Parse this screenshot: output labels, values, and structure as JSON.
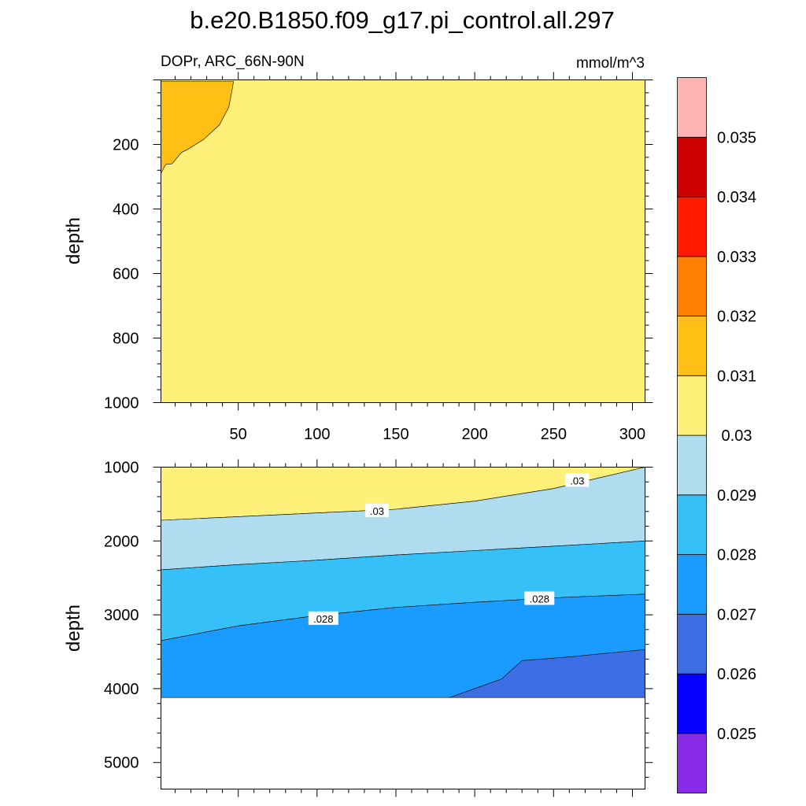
{
  "chart_data": {
    "type": "contour",
    "title": "b.e20.B1850.f09_g17.pi_control.all.297",
    "left_string": "DOPr, ARC_66N-90N",
    "right_string": "mmol/m^3",
    "ylabel": "depth",
    "x_ticks": [
      "50",
      "100",
      "150",
      "200",
      "250",
      "300"
    ],
    "x_range": [
      1,
      308
    ],
    "colorbar": {
      "levels": [
        "0.025",
        "0.026",
        "0.027",
        "0.028",
        "0.029",
        "0.03",
        "0.031",
        "0.032",
        "0.033",
        "0.034",
        "0.035"
      ],
      "colors": [
        "#8a2be8",
        "#0500ff",
        "#3c6ee6",
        "#1a9cff",
        "#36c0f8",
        "#b0dcf0",
        "#fff07a",
        "#ffc015",
        "#ff7f00",
        "#ff1a00",
        "#cc0000",
        "#ffb4b4"
      ]
    },
    "panels": [
      {
        "name": "upper",
        "y_ticks": [
          "200",
          "400",
          "600",
          "800",
          "1000"
        ],
        "y_range": [
          0,
          1000
        ],
        "y_reversed": true,
        "background_fill": "#fff07a",
        "regions": [
          {
            "fill": "#ffc015",
            "level_range": [
              "0.031",
              "0.032"
            ],
            "boundary": [
              [
                1,
                5
              ],
              [
                47,
                5
              ],
              [
                46,
                35
              ],
              [
                44,
                85
              ],
              [
                38,
                140
              ],
              [
                28,
                185
              ],
              [
                18,
                215
              ],
              [
                14,
                225
              ],
              [
                8,
                260
              ],
              [
                4,
                262
              ],
              [
                1,
                290
              ]
            ]
          }
        ],
        "contour_labels": []
      },
      {
        "name": "lower",
        "y_ticks": [
          "1000",
          "2000",
          "3000",
          "4000",
          "5000"
        ],
        "y_range": [
          1000,
          5360
        ],
        "y_reversed": true,
        "bottom_of_data": 4120,
        "regions": [
          {
            "fill": "#fff07a",
            "level_range": [
              "0.03",
              "0.031"
            ],
            "top": [
              [
                1,
                1000
              ],
              [
                308,
                1000
              ]
            ],
            "bottom": [
              [
                1,
                1720
              ],
              [
                50,
                1670
              ],
              [
                100,
                1620
              ],
              [
                150,
                1570
              ],
              [
                200,
                1460
              ],
              [
                250,
                1290
              ],
              [
                308,
                1000
              ]
            ]
          },
          {
            "fill": "#b0dcf0",
            "level_range": [
              "0.029",
              "0.03"
            ],
            "top": [
              [
                1,
                1720
              ],
              [
                50,
                1670
              ],
              [
                100,
                1620
              ],
              [
                150,
                1570
              ],
              [
                200,
                1460
              ],
              [
                250,
                1290
              ],
              [
                308,
                1000
              ]
            ],
            "bottom": [
              [
                1,
                2390
              ],
              [
                50,
                2320
              ],
              [
                100,
                2260
              ],
              [
                150,
                2190
              ],
              [
                200,
                2130
              ],
              [
                250,
                2070
              ],
              [
                308,
                2000
              ]
            ]
          },
          {
            "fill": "#36c0f8",
            "level_range": [
              "0.028",
              "0.029"
            ],
            "top": [
              [
                1,
                2390
              ],
              [
                50,
                2320
              ],
              [
                100,
                2260
              ],
              [
                150,
                2190
              ],
              [
                200,
                2130
              ],
              [
                250,
                2070
              ],
              [
                308,
                2000
              ]
            ],
            "bottom": [
              [
                1,
                3350
              ],
              [
                50,
                3150
              ],
              [
                100,
                3010
              ],
              [
                150,
                2900
              ],
              [
                200,
                2830
              ],
              [
                250,
                2770
              ],
              [
                308,
                2720
              ]
            ]
          },
          {
            "fill": "#1a9cff",
            "level_range": [
              "0.027",
              "0.028"
            ],
            "top": [
              [
                1,
                3350
              ],
              [
                50,
                3150
              ],
              [
                100,
                3010
              ],
              [
                150,
                2900
              ],
              [
                200,
                2830
              ],
              [
                250,
                2770
              ],
              [
                308,
                2720
              ]
            ],
            "bottom": [
              [
                1,
                4120
              ],
              [
                308,
                4120
              ]
            ]
          },
          {
            "fill": "#3c6ee6",
            "level_range": [
              "0.026",
              "0.027"
            ],
            "polygon": [
              [
                184,
                4120
              ],
              [
                217,
                3870
              ],
              [
                230,
                3620
              ],
              [
                260,
                3570
              ],
              [
                308,
                3470
              ],
              [
                308,
                4120
              ]
            ]
          }
        ],
        "contour_labels": [
          {
            "text": ".03",
            "x": 138,
            "y": 1590
          },
          {
            "text": ".03",
            "x": 265,
            "y": 1180
          },
          {
            "text": ".028",
            "x": 104,
            "y": 3050
          },
          {
            "text": ".028",
            "x": 241,
            "y": 2780
          }
        ]
      }
    ]
  }
}
